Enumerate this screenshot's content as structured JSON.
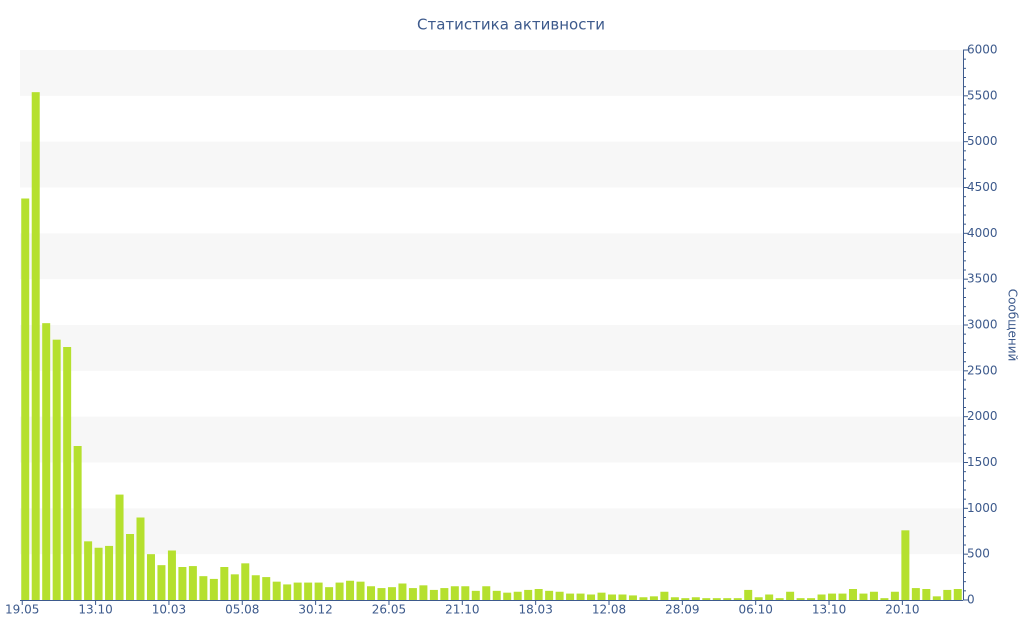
{
  "chart_data": {
    "type": "bar",
    "title": "Статистика активности",
    "y_label": "Сообщений",
    "color": "#b5e02e",
    "categories": [
      "19.05",
      null,
      null,
      null,
      null,
      null,
      null,
      "13.10",
      null,
      null,
      null,
      null,
      null,
      null,
      "10.03",
      null,
      null,
      null,
      null,
      null,
      null,
      "05.08",
      null,
      null,
      null,
      null,
      null,
      null,
      "30.12",
      null,
      null,
      null,
      null,
      null,
      null,
      "26.05",
      null,
      null,
      null,
      null,
      null,
      null,
      "21.10",
      null,
      null,
      null,
      null,
      null,
      null,
      "18.03",
      null,
      null,
      null,
      null,
      null,
      null,
      "12.08",
      null,
      null,
      null,
      null,
      null,
      null,
      "28.09",
      null,
      null,
      null,
      null,
      null,
      null,
      "06.10",
      null,
      null,
      null,
      null,
      null,
      null,
      "13.10",
      null,
      null,
      null,
      null,
      null,
      null,
      "20.10",
      null,
      null,
      null,
      null,
      null
    ],
    "values": [
      4380,
      5540,
      3020,
      2840,
      2760,
      1680,
      640,
      570,
      590,
      1150,
      720,
      900,
      500,
      380,
      540,
      360,
      370,
      260,
      230,
      360,
      280,
      400,
      270,
      250,
      200,
      170,
      190,
      190,
      190,
      140,
      190,
      210,
      200,
      150,
      130,
      140,
      180,
      130,
      160,
      110,
      130,
      150,
      150,
      100,
      150,
      100,
      80,
      90,
      110,
      120,
      100,
      90,
      70,
      70,
      60,
      80,
      60,
      60,
      50,
      30,
      40,
      90,
      30,
      20,
      30,
      20,
      20,
      20,
      20,
      110,
      30,
      60,
      20,
      90,
      20,
      20,
      60,
      70,
      70,
      120,
      70,
      90,
      20,
      90,
      760,
      130,
      120,
      40,
      110,
      120
    ],
    "ylim": [
      0,
      6000
    ],
    "yticks": [
      0,
      500,
      1000,
      1500,
      2000,
      2500,
      3000,
      3500,
      4000,
      4500,
      5000,
      5500,
      6000
    ],
    "y_axis_side": "right",
    "grid": "bands"
  }
}
